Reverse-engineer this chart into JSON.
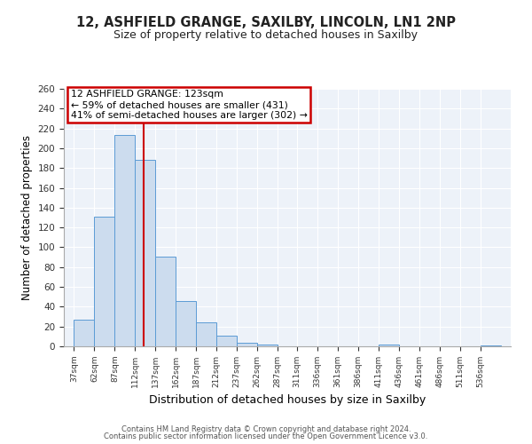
{
  "title": "12, ASHFIELD GRANGE, SAXILBY, LINCOLN, LN1 2NP",
  "subtitle": "Size of property relative to detached houses in Saxilby",
  "xlabel": "Distribution of detached houses by size in Saxilby",
  "ylabel": "Number of detached properties",
  "bar_heights": [
    27,
    131,
    213,
    188,
    91,
    46,
    24,
    11,
    4,
    2,
    0,
    0,
    0,
    0,
    0,
    2,
    0,
    0,
    0,
    0,
    1
  ],
  "bin_labels": [
    "37sqm",
    "62sqm",
    "87sqm",
    "112sqm",
    "137sqm",
    "162sqm",
    "187sqm",
    "212sqm",
    "237sqm",
    "262sqm",
    "287sqm",
    "311sqm",
    "336sqm",
    "361sqm",
    "386sqm",
    "411sqm",
    "436sqm",
    "461sqm",
    "486sqm",
    "511sqm",
    "536sqm"
  ],
  "bin_edges": [
    37,
    62,
    87,
    112,
    137,
    162,
    187,
    212,
    237,
    262,
    287,
    311,
    336,
    361,
    386,
    411,
    436,
    461,
    486,
    511,
    536
  ],
  "bar_color": "#ccdcee",
  "bar_edge_color": "#5b9bd5",
  "vline_x": 123,
  "vline_color": "#cc0000",
  "annotation_line1": "12 ASHFIELD GRANGE: 123sqm",
  "annotation_line2": "← 59% of detached houses are smaller (431)",
  "annotation_line3": "41% of semi-detached houses are larger (302) →",
  "annotation_box_color": "#cc0000",
  "ylim": [
    0,
    260
  ],
  "yticks": [
    0,
    20,
    40,
    60,
    80,
    100,
    120,
    140,
    160,
    180,
    200,
    220,
    240,
    260
  ],
  "background_color": "#edf2f9",
  "footer_line1": "Contains HM Land Registry data © Crown copyright and database right 2024.",
  "footer_line2": "Contains public sector information licensed under the Open Government Licence v3.0."
}
